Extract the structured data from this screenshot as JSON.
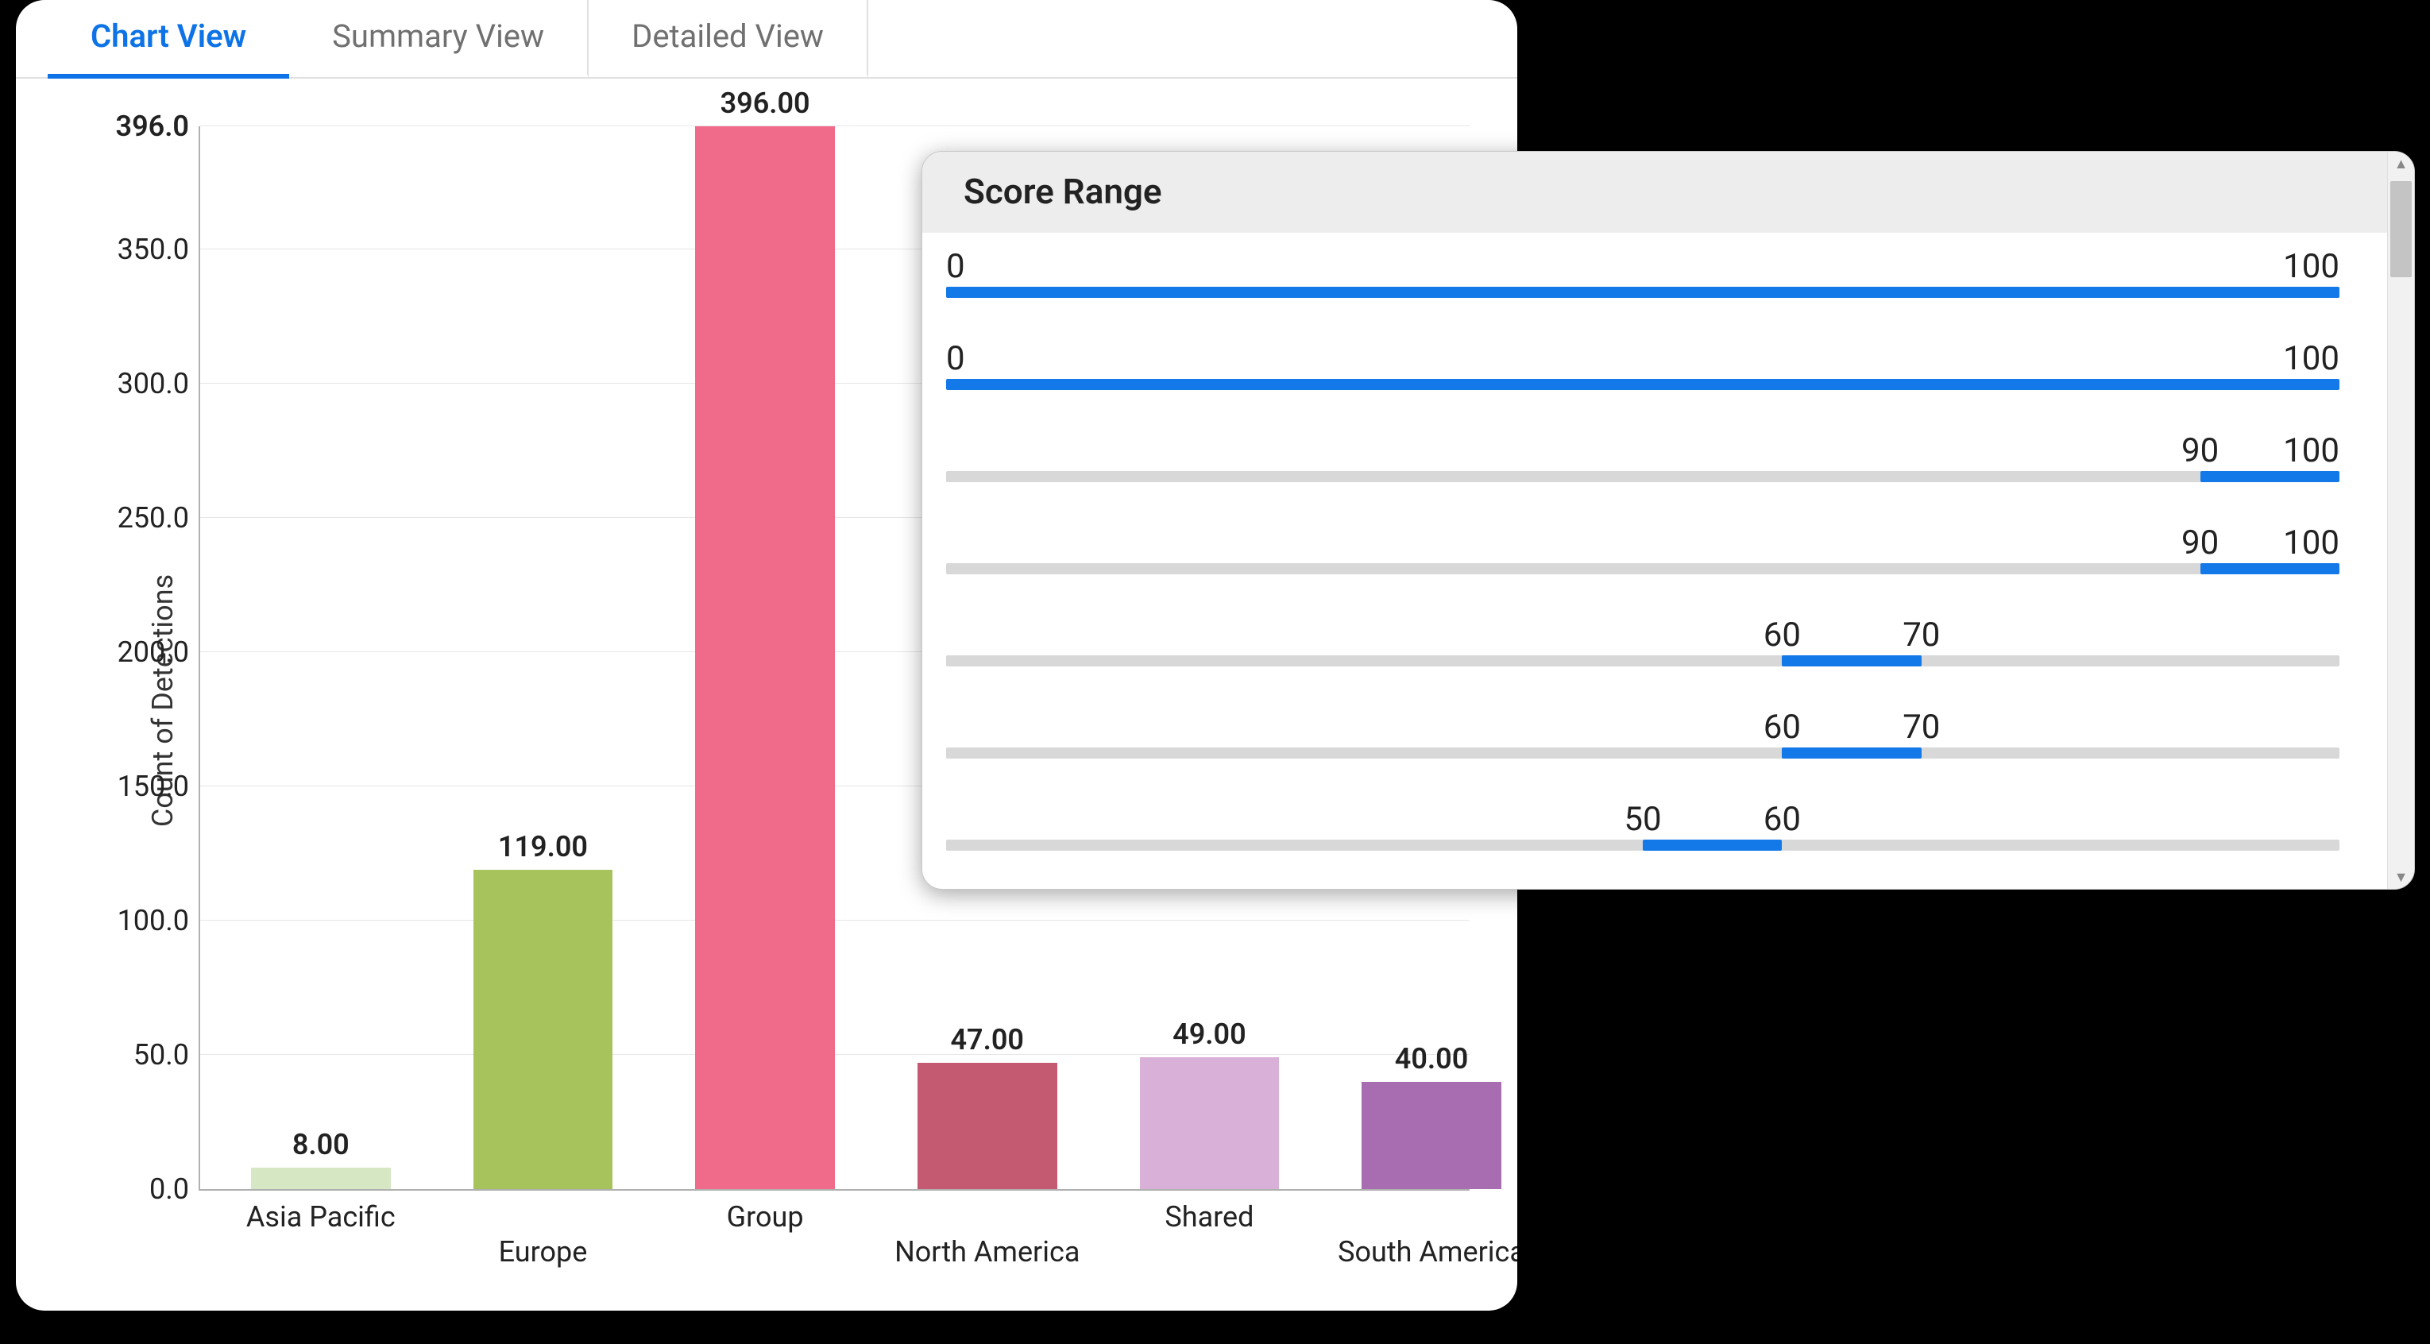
{
  "tabs": [
    {
      "label": "Chart View",
      "active": true
    },
    {
      "label": "Summary View",
      "active": false
    },
    {
      "label": "Detailed View",
      "active": false
    }
  ],
  "chart": {
    "type": "bar",
    "ylabel": "Count of Detections",
    "ylim": [
      0,
      396
    ],
    "yticks": [
      0.0,
      50.0,
      100.0,
      150.0,
      200.0,
      250.0,
      300.0,
      350.0,
      396.0
    ],
    "ytick_labels": [
      "0.0",
      "50.0",
      "100.0",
      "150.0",
      "200.0",
      "250.0",
      "300.0",
      "350.0",
      "396.0"
    ],
    "grid_color": "#e6e6e6",
    "axis_color": "#b0b0b0",
    "label_fontsize": 36,
    "value_fontsize": 36,
    "bar_width_pct": 11,
    "categories": [
      "Asia Pacific",
      "Europe",
      "Group",
      "North America",
      "Shared",
      "South America"
    ],
    "values": [
      8.0,
      119.0,
      396.0,
      47.0,
      49.0,
      40.0
    ],
    "value_labels": [
      "8.00",
      "119.00",
      "396.00",
      "47.00",
      "49.00",
      "40.00"
    ],
    "bar_colors": [
      "#d6e7c4",
      "#a7c35c",
      "#f06a8a",
      "#c45a72",
      "#d9b0d7",
      "#a86db0"
    ],
    "x_positions_pct": [
      4,
      21.5,
      39,
      56.5,
      74,
      91.5
    ],
    "xtick_y_offsets": [
      0,
      44,
      0,
      44,
      0,
      44
    ]
  },
  "panel": {
    "title": "Score Range",
    "domain": [
      0,
      100
    ],
    "track_color": "#d8d8d8",
    "fill_color": "#1479e8",
    "label_fontsize": 42,
    "rows": [
      {
        "min": 0,
        "max": 100,
        "min_label": "0",
        "max_label": "100"
      },
      {
        "min": 0,
        "max": 100,
        "min_label": "0",
        "max_label": "100"
      },
      {
        "min": 90,
        "max": 100,
        "min_label": "90",
        "max_label": "100"
      },
      {
        "min": 90,
        "max": 100,
        "min_label": "90",
        "max_label": "100"
      },
      {
        "min": 60,
        "max": 70,
        "min_label": "60",
        "max_label": "70"
      },
      {
        "min": 60,
        "max": 70,
        "min_label": "60",
        "max_label": "70"
      },
      {
        "min": 50,
        "max": 60,
        "min_label": "50",
        "max_label": "60"
      }
    ],
    "scrollbar": {
      "thumb_top_pct": 4,
      "thumb_height_pct": 13
    }
  }
}
